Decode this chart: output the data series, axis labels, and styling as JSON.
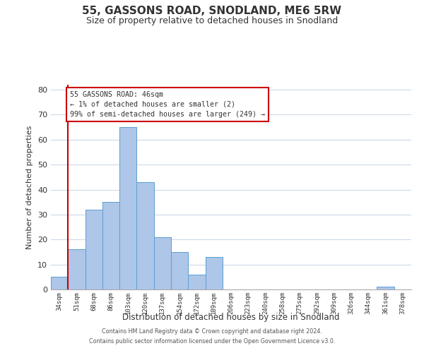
{
  "title": "55, GASSONS ROAD, SNODLAND, ME6 5RW",
  "subtitle": "Size of property relative to detached houses in Snodland",
  "xlabel": "Distribution of detached houses by size in Snodland",
  "ylabel": "Number of detached properties",
  "bar_labels": [
    "34sqm",
    "51sqm",
    "68sqm",
    "86sqm",
    "103sqm",
    "120sqm",
    "137sqm",
    "154sqm",
    "172sqm",
    "189sqm",
    "206sqm",
    "223sqm",
    "240sqm",
    "258sqm",
    "275sqm",
    "292sqm",
    "309sqm",
    "326sqm",
    "344sqm",
    "361sqm",
    "378sqm"
  ],
  "bar_heights": [
    5,
    16,
    32,
    35,
    65,
    43,
    21,
    15,
    6,
    13,
    0,
    0,
    0,
    0,
    0,
    0,
    0,
    0,
    0,
    1,
    0
  ],
  "bar_color": "#aec6e8",
  "bar_edge_color": "#5a9fd4",
  "ylim": [
    0,
    82
  ],
  "yticks": [
    0,
    10,
    20,
    30,
    40,
    50,
    60,
    70,
    80
  ],
  "property_line_color": "#cc0000",
  "annotation_text": "55 GASSONS ROAD: 46sqm\n← 1% of detached houses are smaller (2)\n99% of semi-detached houses are larger (249) →",
  "annotation_box_color": "#cc0000",
  "footer_line1": "Contains HM Land Registry data © Crown copyright and database right 2024.",
  "footer_line2": "Contains public sector information licensed under the Open Government Licence v3.0.",
  "background_color": "#ffffff",
  "grid_color": "#ccd9e8"
}
